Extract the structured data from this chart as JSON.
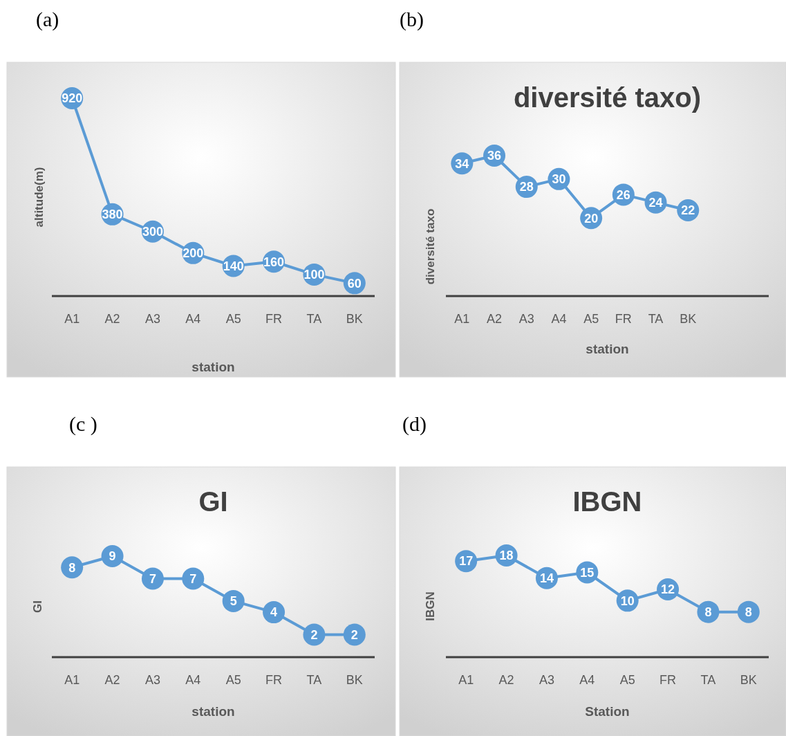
{
  "chart_data": [
    {
      "type": "line",
      "annotations": [
        "(a)"
      ],
      "xlabel": "station",
      "ylabel": "altitude(m)",
      "categories": [
        "A1",
        "A2",
        "A3",
        "A4",
        "A5",
        "FR",
        "TA",
        "BK"
      ],
      "series": [
        {
          "color": "#5b9bd5",
          "values": [
            920,
            380,
            300,
            200,
            140,
            160,
            100,
            60
          ]
        }
      ],
      "data_labels": true,
      "marker": "circle",
      "tick_labels": "x"
    },
    {
      "type": "line",
      "annotations": [
        "(b)"
      ],
      "title": "diversité taxo)",
      "xlabel": "station",
      "ylabel": "diversité taxo",
      "categories": [
        "A1",
        "A2",
        "A3",
        "A4",
        "A5",
        "FR",
        "TA",
        "BK",
        null,
        null
      ],
      "series": [
        {
          "color": "#5b9bd5",
          "values": [
            34,
            36,
            28,
            30,
            20,
            26,
            24,
            22,
            null,
            null
          ]
        }
      ],
      "data_labels": true,
      "marker": "circle",
      "tick_labels": "x"
    },
    {
      "type": "line",
      "annotations": [
        "(c )"
      ],
      "title": "GI",
      "xlabel": "station",
      "ylabel": "GI",
      "categories": [
        "A1",
        "A2",
        "A3",
        "A4",
        "A5",
        "FR",
        "TA",
        "BK"
      ],
      "series": [
        {
          "color": "#5b9bd5",
          "values": [
            8,
            9,
            7,
            7,
            5,
            4,
            2,
            2
          ]
        }
      ],
      "data_labels": true,
      "marker": "circle",
      "tick_labels": "x"
    },
    {
      "type": "line",
      "annotations": [
        "(d)"
      ],
      "title": "IBGN",
      "xlabel": "Station",
      "ylabel": "IBGN",
      "categories": [
        "A1",
        "A2",
        "A3",
        "A4",
        "A5",
        "FR",
        "TA",
        "BK"
      ],
      "series": [
        {
          "color": "#5b9bd5",
          "values": [
            17,
            18,
            14,
            15,
            10,
            12,
            8,
            8
          ]
        }
      ],
      "data_labels": true,
      "marker": "circle",
      "tick_labels": "x"
    }
  ]
}
